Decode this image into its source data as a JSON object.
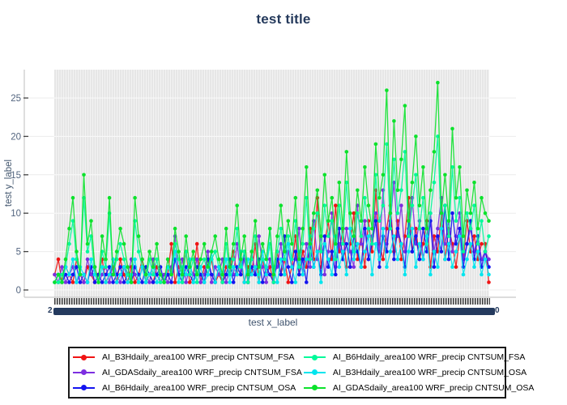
{
  "title": "test title",
  "y_axis": {
    "label": "test y_label",
    "ticks": [
      0,
      5,
      10,
      15,
      20,
      25
    ]
  },
  "x_axis": {
    "label": "test x_label",
    "tick_labels_readable": false,
    "overlap_edge_left": "2",
    "overlap_edge_right": "0"
  },
  "style_colors": {
    "title": "#253a5c",
    "axis_title": "#3f536d",
    "tick_label": "#53657f",
    "axis_line": "#c8c8c8",
    "gridline_outer": "#ececec",
    "gridline_inner": "#fafafa",
    "overlap_band": "#243a5e",
    "legend_border": "#1a1a1a"
  },
  "chart_data": {
    "type": "line",
    "mode": "lines+markers",
    "title": "test title",
    "xlabel": "test x_label",
    "ylabel": "test y_label",
    "ylim": [
      -1.5,
      28.7
    ],
    "grid": true,
    "legend_position": "bottom",
    "x_count": 120,
    "x_tick_labels": "overlapping date labels (illegible solid band)",
    "series": [
      {
        "name": "AI_B3Hdaily_area100 WRF_precip CNTSUM_FSA",
        "color": "#f01414",
        "values": [
          2,
          4,
          1,
          3,
          2,
          1,
          4,
          2,
          1,
          3,
          2,
          1,
          2,
          4,
          1,
          2,
          3,
          1,
          4,
          2,
          1,
          3,
          1,
          2,
          4,
          1,
          2,
          1,
          3,
          2,
          1,
          2,
          6,
          1,
          3,
          2,
          5,
          1,
          2,
          6,
          1,
          3,
          2,
          4,
          1,
          2,
          1,
          3,
          2,
          5,
          2,
          4,
          1,
          3,
          2,
          6,
          1,
          4,
          2,
          3,
          1,
          5,
          2,
          4,
          1,
          3,
          7,
          2,
          5,
          3,
          8,
          4,
          12,
          3,
          6,
          9,
          4,
          11,
          5,
          8,
          3,
          6,
          10,
          4,
          7,
          3,
          9,
          5,
          13,
          6,
          4,
          8,
          11,
          5,
          9,
          4,
          7,
          12,
          5,
          8,
          4,
          6,
          9,
          3,
          7,
          5,
          10,
          4,
          8,
          6,
          3,
          7,
          4,
          9,
          5,
          7,
          4,
          6,
          6,
          1
        ]
      },
      {
        "name": "AI_GDASdaily_area100 WRF_precip CNTSUM_FSA",
        "color": "#7d2ee0",
        "values": [
          2,
          1,
          3,
          1,
          2,
          3,
          1,
          2,
          1,
          4,
          2,
          3,
          1,
          2,
          3,
          1,
          4,
          2,
          1,
          3,
          2,
          4,
          2,
          1,
          3,
          2,
          1,
          4,
          2,
          1,
          2,
          1,
          3,
          7,
          2,
          4,
          1,
          3,
          2,
          4,
          1,
          2,
          5,
          1,
          3,
          2,
          4,
          1,
          3,
          2,
          6,
          2,
          4,
          1,
          5,
          2,
          7,
          3,
          1,
          4,
          2,
          3,
          6,
          2,
          5,
          3,
          4,
          8,
          2,
          6,
          3,
          9,
          4,
          7,
          2,
          5,
          10,
          3,
          6,
          4,
          8,
          5,
          3,
          11,
          6,
          9,
          4,
          7,
          10,
          5,
          13,
          6,
          9,
          14,
          7,
          11,
          5,
          8,
          12,
          6,
          9,
          4,
          7,
          10,
          5,
          8,
          12,
          6,
          9,
          5,
          7,
          10,
          4,
          6,
          8,
          5,
          7,
          4,
          5,
          4
        ]
      },
      {
        "name": "AI_B6Hdaily_area100 WRF_precip CNTSUM_OSA",
        "color": "#1414f0",
        "values": [
          1,
          2,
          1,
          2,
          1,
          2,
          3,
          1,
          2,
          1,
          3,
          1,
          2,
          1,
          2,
          3,
          1,
          2,
          3,
          1,
          2,
          1,
          3,
          2,
          1,
          3,
          2,
          1,
          2,
          3,
          1,
          2,
          1,
          4,
          2,
          1,
          3,
          2,
          1,
          3,
          2,
          1,
          4,
          2,
          1,
          3,
          1,
          2,
          4,
          1,
          3,
          2,
          5,
          1,
          3,
          2,
          4,
          1,
          3,
          2,
          1,
          4,
          2,
          7,
          3,
          1,
          5,
          2,
          4,
          1,
          6,
          3,
          5,
          2,
          7,
          3,
          5,
          2,
          8,
          4,
          6,
          3,
          7,
          5,
          3,
          8,
          4,
          6,
          9,
          3,
          7,
          5,
          10,
          4,
          8,
          6,
          3,
          9,
          5,
          7,
          4,
          8,
          5,
          9,
          3,
          7,
          5,
          11,
          4,
          10,
          6,
          8,
          3,
          6,
          9,
          4,
          7,
          3,
          5,
          3
        ]
      },
      {
        "name": "AI_B6Hdaily_area100 WRF_precip CNTSUM_FSA",
        "color": "#00fa9a",
        "values": [
          1,
          1,
          2,
          3,
          6,
          9,
          4,
          2,
          12,
          5,
          7,
          2,
          1,
          5,
          3,
          10,
          2,
          4,
          6,
          4,
          2,
          1,
          9,
          5,
          3,
          1,
          4,
          2,
          4,
          1,
          1,
          3,
          2,
          6,
          4,
          1,
          5,
          2,
          4,
          1,
          3,
          4,
          2,
          4,
          5,
          3,
          1,
          6,
          2,
          4,
          8,
          3,
          5,
          1,
          4,
          7,
          2,
          4,
          3,
          6,
          1,
          5,
          8,
          4,
          7,
          4,
          9,
          3,
          6,
          12,
          4,
          8,
          10,
          5,
          11,
          7,
          9,
          4,
          11,
          6,
          14,
          8,
          5,
          10,
          7,
          12,
          8,
          6,
          15,
          9,
          11,
          19,
          8,
          17,
          10,
          13,
          18,
          7,
          11,
          15,
          8,
          12,
          6,
          10,
          14,
          20,
          8,
          11,
          7,
          16,
          9,
          12,
          5,
          10,
          8,
          11,
          6,
          9,
          5,
          7
        ]
      },
      {
        "name": "AI_B3Hdaily_area100 WRF_precip CNTSUM_OSA",
        "color": "#00e5ee",
        "values": [
          1,
          2,
          1,
          3,
          2,
          4,
          1,
          3,
          2,
          1,
          4,
          2,
          1,
          3,
          1,
          2,
          4,
          1,
          2,
          3,
          1,
          2,
          4,
          1,
          3,
          1,
          2,
          3,
          1,
          2,
          1,
          3,
          2,
          5,
          1,
          3,
          2,
          4,
          1,
          2,
          3,
          1,
          2,
          5,
          1,
          3,
          2,
          4,
          1,
          3,
          2,
          5,
          1,
          4,
          2,
          3,
          1,
          5,
          2,
          8,
          3,
          1,
          4,
          2,
          6,
          3,
          1,
          5,
          2,
          4,
          7,
          3,
          5,
          1,
          6,
          4,
          2,
          7,
          3,
          5,
          2,
          8,
          4,
          6,
          3,
          5,
          7,
          2,
          6,
          4,
          8,
          3,
          5,
          7,
          4,
          6,
          2,
          5,
          8,
          3,
          6,
          4,
          7,
          2,
          5,
          3,
          8,
          4,
          6,
          3,
          5,
          7,
          2,
          4,
          6,
          3,
          5,
          2,
          4,
          2
        ]
      },
      {
        "name": "AI_GDASdaily_area100 WRF_precip CNTSUM_OSA",
        "color": "#0ce22c",
        "values": [
          1,
          2,
          1,
          4,
          8,
          12,
          5,
          2,
          15,
          6,
          9,
          3,
          1,
          7,
          4,
          12,
          2,
          5,
          8,
          6,
          3,
          1,
          12,
          7,
          4,
          2,
          5,
          3,
          6,
          2,
          1,
          4,
          2,
          8,
          5,
          2,
          7,
          3,
          5,
          2,
          4,
          6,
          3,
          5,
          7,
          4,
          2,
          8,
          3,
          6,
          11,
          4,
          7,
          2,
          5,
          9,
          3,
          6,
          4,
          8,
          2,
          7,
          11,
          5,
          9,
          6,
          12,
          4,
          8,
          16,
          6,
          10,
          13,
          7,
          15,
          9,
          12,
          6,
          14,
          8,
          18,
          10,
          7,
          13,
          9,
          16,
          11,
          8,
          19,
          12,
          15,
          26,
          10,
          22,
          13,
          17,
          24,
          9,
          14,
          20,
          11,
          16,
          8,
          13,
          18,
          27,
          10,
          15,
          9,
          21,
          12,
          16,
          7,
          13,
          10,
          14,
          8,
          12,
          10,
          9
        ]
      }
    ]
  }
}
